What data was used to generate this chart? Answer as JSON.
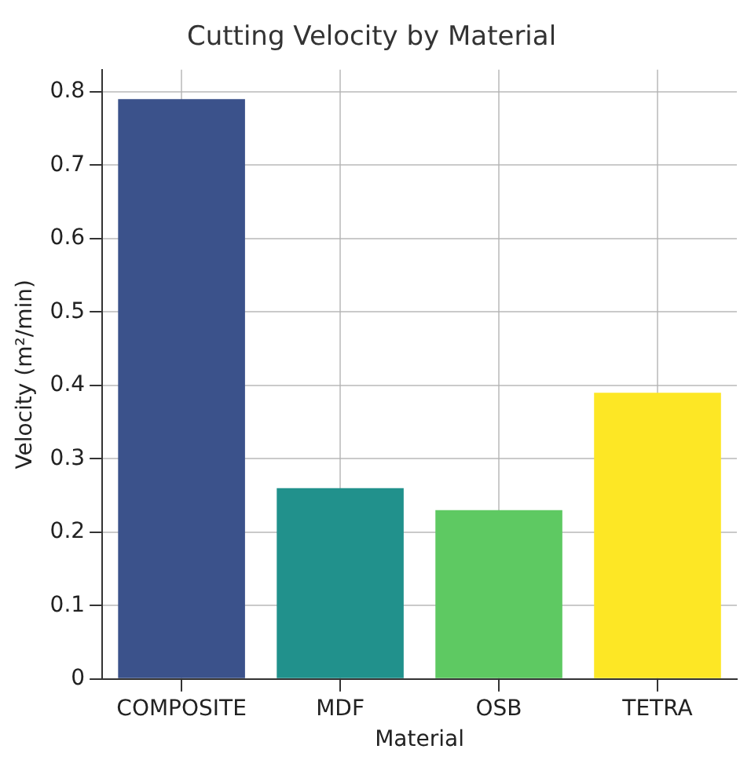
{
  "chart_data": {
    "type": "bar",
    "title": "Cutting Velocity by Material",
    "xlabel": "Material",
    "ylabel": "Velocity (m²/min)",
    "categories": [
      "COMPOSITE",
      "MDF",
      "OSB",
      "TETRA"
    ],
    "values": [
      0.79,
      0.26,
      0.23,
      0.39
    ],
    "colors": [
      "#3b528b",
      "#21918c",
      "#5ec962",
      "#fde725"
    ],
    "ylim": [
      0,
      0.83
    ],
    "yticks": [
      0,
      0.1,
      0.2,
      0.3,
      0.4,
      0.5,
      0.6,
      0.7,
      0.8
    ],
    "grid": true,
    "legend": false
  }
}
